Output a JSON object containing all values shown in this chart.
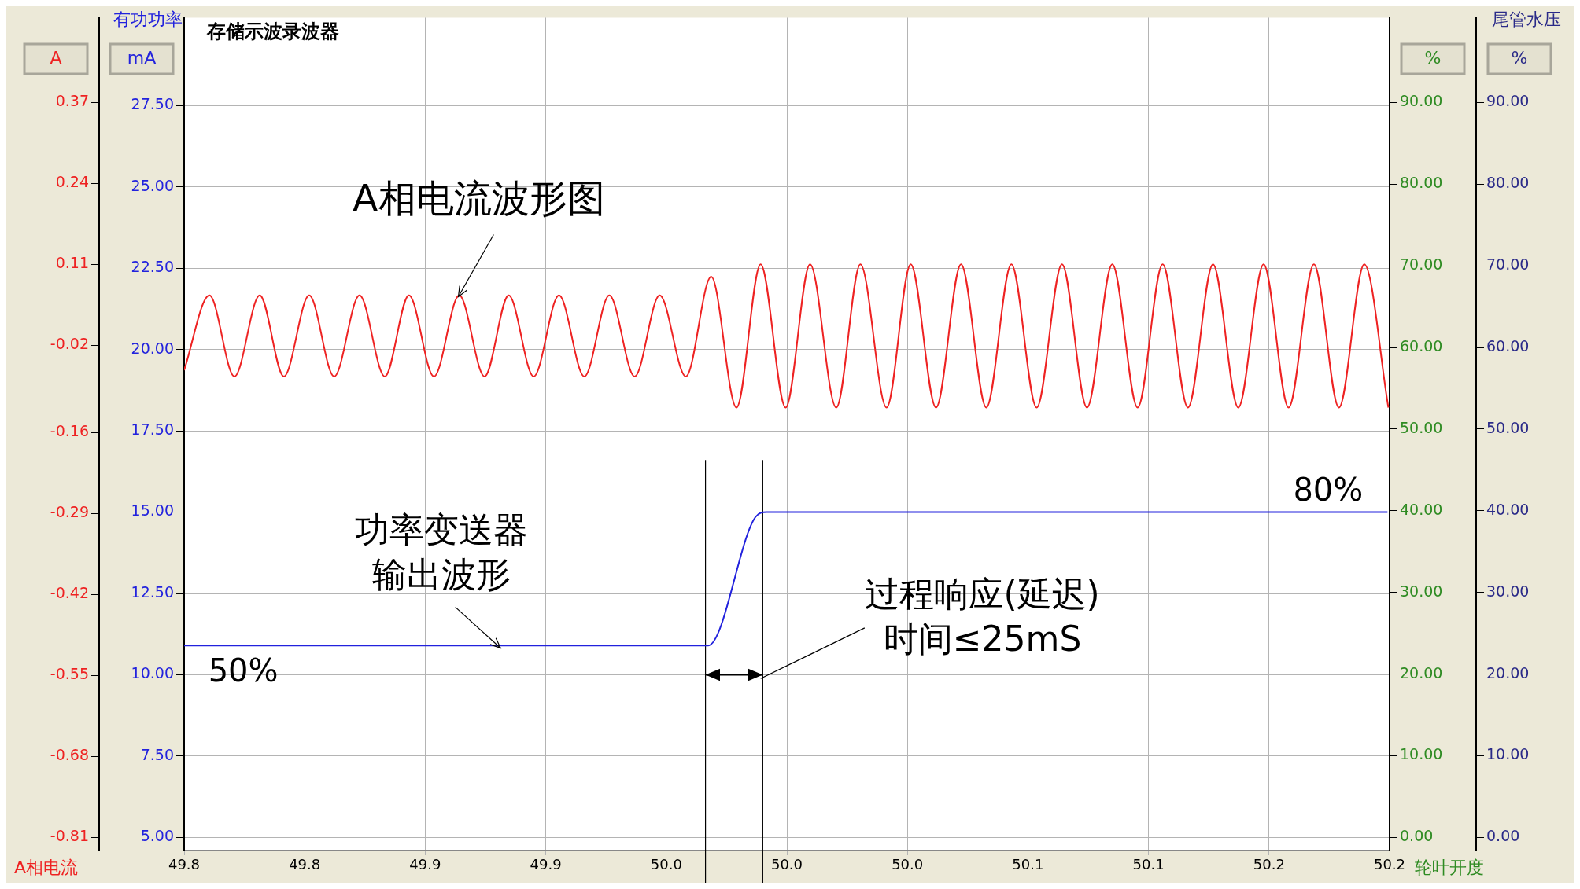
{
  "chart_data": {
    "type": "line",
    "title": "存储示波录波器",
    "ylabel": "A相电流",
    "y2label": "有功功率",
    "y3label": "轮叶开度",
    "xlim": [
      49.8,
      50.2
    ],
    "xticks": [
      {
        "value": 49.8,
        "label": "49.8"
      },
      {
        "value": 49.84,
        "label": "49.8"
      },
      {
        "value": 49.88,
        "label": "49.9"
      },
      {
        "value": 49.92,
        "label": "49.9"
      },
      {
        "value": 49.96,
        "label": "50.0"
      },
      {
        "value": 50.0,
        "label": "50.0"
      },
      {
        "value": 50.04,
        "label": "50.0"
      },
      {
        "value": 50.08,
        "label": "50.1"
      },
      {
        "value": 50.12,
        "label": "50.1"
      },
      {
        "value": 50.16,
        "label": "50.2"
      },
      {
        "value": 50.2,
        "label": "50.2"
      }
    ],
    "ylim": [
      -0.831,
      0.506
    ],
    "yticks": [
      -0.81,
      -0.68,
      -0.55,
      -0.42,
      -0.29,
      -0.16,
      -0.02,
      0.11,
      0.24,
      0.37
    ],
    "y2lim": [
      4.6,
      30.2
    ],
    "y2ticks": [
      {
        "value": 5,
        "label": "5.00"
      },
      {
        "value": 7.5,
        "label": "7.50"
      },
      {
        "value": 10,
        "label": "10.00"
      },
      {
        "value": 12.5,
        "label": "12.50"
      },
      {
        "value": 15,
        "label": "15.00"
      },
      {
        "value": 17.5,
        "label": "17.50"
      },
      {
        "value": 20,
        "label": "20.00"
      },
      {
        "value": 22.5,
        "label": "22.50"
      },
      {
        "value": 25,
        "label": "25.00"
      },
      {
        "value": 27.5,
        "label": "27.50"
      }
    ],
    "y3lim": [
      -1.6,
      100.4
    ],
    "y3ticks": [
      {
        "value": 0,
        "label": "0.00"
      },
      {
        "value": 10,
        "label": "10.00"
      },
      {
        "value": 20,
        "label": "20.00"
      },
      {
        "value": 30,
        "label": "30.00"
      },
      {
        "value": 40,
        "label": "40.00"
      },
      {
        "value": 50,
        "label": "50.00"
      },
      {
        "value": 60,
        "label": "60.00"
      },
      {
        "value": 70,
        "label": "70.00"
      },
      {
        "value": 80,
        "label": "80.00"
      },
      {
        "value": 90,
        "label": "90.00"
      }
    ],
    "grid": true,
    "marker": "none",
    "line_style": "solid",
    "series": [
      {
        "color": "#ee2222",
        "x": [
          49.8,
          49.8084,
          49.8167,
          49.8251,
          49.8331,
          49.8415,
          49.8498,
          49.8582,
          49.8666,
          49.8746,
          49.8829,
          49.8913,
          49.8997,
          49.9077,
          49.916,
          49.9244,
          49.9328,
          49.9411,
          49.9495,
          49.9578,
          49.9665,
          49.9749,
          49.9833,
          49.9913,
          49.9996,
          50.0077,
          50.0164,
          50.0244,
          50.0331,
          50.0411,
          50.0495,
          50.0578,
          50.0662,
          50.0745,
          50.0829,
          50.0913,
          50.0996,
          50.108,
          50.1164,
          50.1247,
          50.1331,
          50.1414,
          50.1498,
          50.1582,
          50.1665,
          50.1749,
          50.1832,
          50.1916,
          50.1996
        ],
        "values": [
          -0.06,
          0.06,
          -0.07,
          0.06,
          -0.07,
          0.06,
          -0.07,
          0.06,
          -0.07,
          0.06,
          -0.07,
          0.06,
          -0.07,
          0.06,
          -0.07,
          0.06,
          -0.07,
          0.06,
          -0.07,
          0.06,
          -0.07,
          0.09,
          -0.12,
          0.11,
          -0.12,
          0.11,
          -0.12,
          0.11,
          -0.12,
          0.11,
          -0.12,
          0.11,
          -0.12,
          0.11,
          -0.12,
          0.11,
          -0.12,
          0.11,
          -0.12,
          0.11,
          -0.12,
          0.11,
          -0.12,
          0.11,
          -0.12,
          0.11,
          -0.12,
          0.11,
          -0.12
        ]
      },
      {
        "color": "#2222dd",
        "axis": "y2",
        "x": [
          49.8,
          49.9739,
          49.9896,
          49.9933,
          50.1993
        ],
        "values": [
          10.9,
          10.9,
          14.85,
          15.0,
          15.0
        ]
      }
    ],
    "ref_lines": [
      {
        "axis": "x",
        "value": 49.973,
        "color": "#000000"
      },
      {
        "axis": "x",
        "value": 49.992,
        "color": "#000000"
      }
    ],
    "annotations": [
      "A",
      "mA",
      "%",
      "%",
      {
        "text": "A相电流波形图",
        "x": 49.891,
        "y": 0.058
      },
      {
        "text": "功率变送器输出波形",
        "x": 49.905,
        "y": -0.506
      },
      "50%",
      "80%",
      {
        "text": "过程响应(延迟)时间≤25mS",
        "x": 49.9913,
        "y": -0.555
      },
      "尾管水压"
    ]
  }
}
